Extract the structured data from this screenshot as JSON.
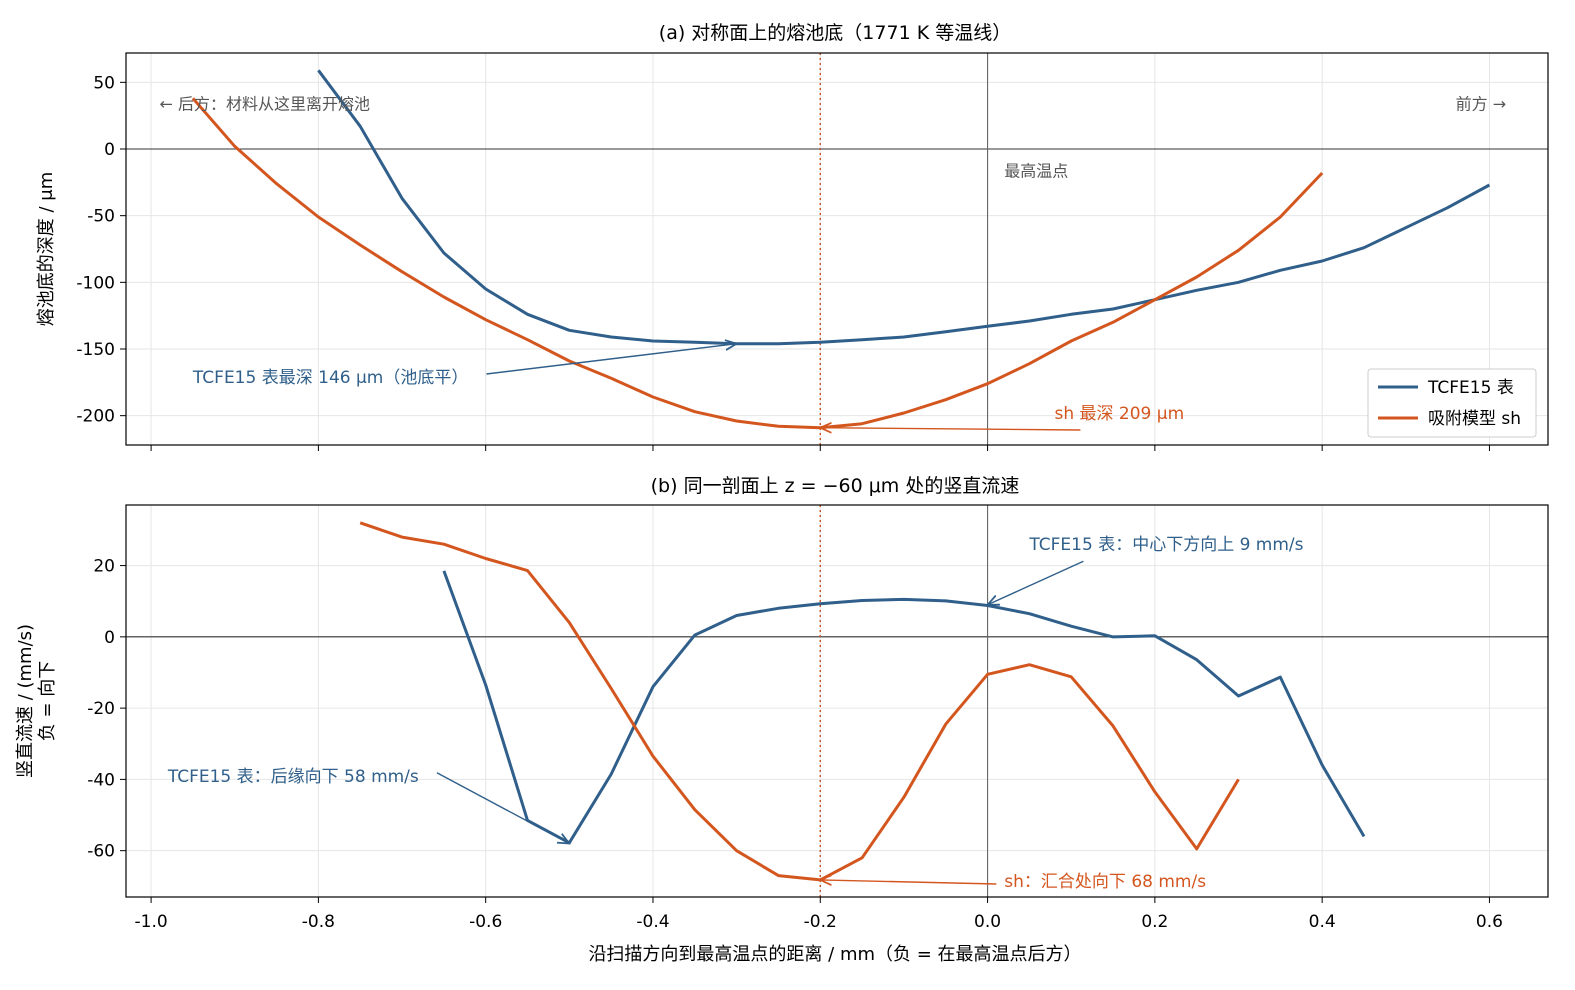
{
  "colors": {
    "tcfe": "#2f5f8a",
    "sh": "#d4561f",
    "peak_line": "#c8501e",
    "note": "#555555"
  },
  "chart_data": [
    {
      "type": "line",
      "title": "(a) 对称面上的熔池底（1771 K 等温线）",
      "xlabel": "",
      "ylabel": "熔池底的深度 / μm",
      "xlim": [
        -1.03,
        0.67
      ],
      "ylim": [
        -222,
        72
      ],
      "x_ticks": [
        "-1.0",
        "-0.8",
        "-0.6",
        "-0.4",
        "-0.2",
        "0.0",
        "0.2",
        "0.4",
        "0.6"
      ],
      "y_ticks": [
        "50",
        "0",
        "-50",
        "-100",
        "-150",
        "-200"
      ],
      "grid": true,
      "legend": "bottom-right",
      "series": [
        {
          "name": "TCFE15 表",
          "color": "#2f5f8a",
          "x": [
            -0.8,
            -0.75,
            -0.7,
            -0.65,
            -0.6,
            -0.55,
            -0.5,
            -0.45,
            -0.4,
            -0.35,
            -0.3,
            -0.25,
            -0.2,
            -0.15,
            -0.1,
            -0.05,
            0.0,
            0.05,
            0.1,
            0.15,
            0.2,
            0.25,
            0.3,
            0.35,
            0.4,
            0.45,
            0.5,
            0.55,
            0.6
          ],
          "y": [
            59,
            17,
            -37,
            -78,
            -105,
            -124,
            -136,
            -141,
            -144,
            -145,
            -146,
            -146,
            -145,
            -143,
            -141,
            -137,
            -133,
            -129,
            -124,
            -120,
            -113,
            -106,
            -100,
            -91,
            -84,
            -74,
            -59,
            -44,
            -27
          ]
        },
        {
          "name": "吸附模型 sh",
          "color": "#d4561f",
          "x": [
            -0.95,
            -0.9,
            -0.85,
            -0.8,
            -0.75,
            -0.7,
            -0.65,
            -0.6,
            -0.55,
            -0.5,
            -0.45,
            -0.4,
            -0.35,
            -0.3,
            -0.25,
            -0.2,
            -0.15,
            -0.1,
            -0.05,
            0.0,
            0.05,
            0.1,
            0.15,
            0.2,
            0.25,
            0.3,
            0.35,
            0.4
          ],
          "y": [
            38,
            2,
            -26,
            -51,
            -72,
            -92,
            -111,
            -128,
            -143,
            -159,
            -172,
            -186,
            -197,
            -204,
            -208,
            -209,
            -206,
            -198,
            -188,
            -176,
            -161,
            -144,
            -130,
            -113,
            -96,
            -76,
            -51,
            -18
          ]
        }
      ],
      "annotations": [
        {
          "text": "← 后方：材料从这里离开熔池",
          "x": -0.99,
          "y": 34
        },
        {
          "text": "前方 →",
          "x": 0.62,
          "y": 34
        },
        {
          "text": "最高温点",
          "x": 0.02,
          "y": -16
        },
        {
          "text": "TCFE15 表最深 146 μm（池底平）",
          "x": -0.95,
          "y": -171,
          "arrow_to": [
            -0.3,
            -146
          ]
        },
        {
          "text": "sh 最深 209 μm",
          "x": 0.08,
          "y": -198,
          "arrow_to": [
            -0.2,
            -209
          ]
        }
      ]
    },
    {
      "type": "line",
      "title": "(b) 同一剖面上 z = −60 μm 处的竖直流速",
      "xlabel": "沿扫描方向到最高温点的距离 / mm（负 = 在最高温点后方）",
      "ylabel": "竖直流速 / (mm/s)\n负 = 向下",
      "xlim": [
        -1.03,
        0.67
      ],
      "ylim": [
        -73,
        37
      ],
      "x_ticks": [
        "-1.0",
        "-0.8",
        "-0.6",
        "-0.4",
        "-0.2",
        "0.0",
        "0.2",
        "0.4",
        "0.6"
      ],
      "y_ticks": [
        "20",
        "0",
        "-20",
        "-40",
        "-60"
      ],
      "grid": true,
      "series": [
        {
          "name": "TCFE15 表",
          "color": "#2f5f8a",
          "x": [
            -0.65,
            -0.6,
            -0.55,
            -0.5,
            -0.45,
            -0.4,
            -0.35,
            -0.3,
            -0.25,
            -0.2,
            -0.15,
            -0.1,
            -0.05,
            0.0,
            0.05,
            0.1,
            0.15,
            0.2,
            0.25,
            0.3,
            0.35,
            0.4,
            0.45
          ],
          "y": [
            18.5,
            -13.5,
            -51.5,
            -57.8,
            -38.5,
            -14,
            0.5,
            6,
            8,
            9.3,
            10.2,
            10.5,
            10.1,
            8.8,
            6.5,
            3,
            0,
            0.3,
            -6.4,
            -16.6,
            -11.3,
            -36,
            -56
          ]
        },
        {
          "name": "吸附模型 sh",
          "color": "#d4561f",
          "x": [
            -0.75,
            -0.7,
            -0.65,
            -0.6,
            -0.55,
            -0.5,
            -0.45,
            -0.4,
            -0.35,
            -0.3,
            -0.25,
            -0.2,
            -0.15,
            -0.1,
            -0.05,
            0.0,
            0.05,
            0.1,
            0.15,
            0.2,
            0.25,
            0.3
          ],
          "y": [
            32,
            28,
            26,
            22,
            18.6,
            4,
            -14.5,
            -33.5,
            -48.5,
            -60,
            -67,
            -68.2,
            -62,
            -45,
            -24.5,
            -10.5,
            -7.8,
            -11.2,
            -25,
            -43.5,
            -59.5,
            -40
          ]
        }
      ],
      "annotations": [
        {
          "text": "TCFE15 表：中心下方向上 9 mm/s",
          "x": 0.05,
          "y": 26,
          "arrow_to": [
            0.0,
            9
          ]
        },
        {
          "text": "TCFE15 表：后缘向下 58 mm/s",
          "x": -0.98,
          "y": -39,
          "arrow_to": [
            -0.5,
            -58
          ]
        },
        {
          "text": "sh：汇合处向下 68 mm/s",
          "x": 0.02,
          "y": -68.5,
          "arrow_to": [
            -0.2,
            -68.2
          ]
        }
      ]
    }
  ]
}
